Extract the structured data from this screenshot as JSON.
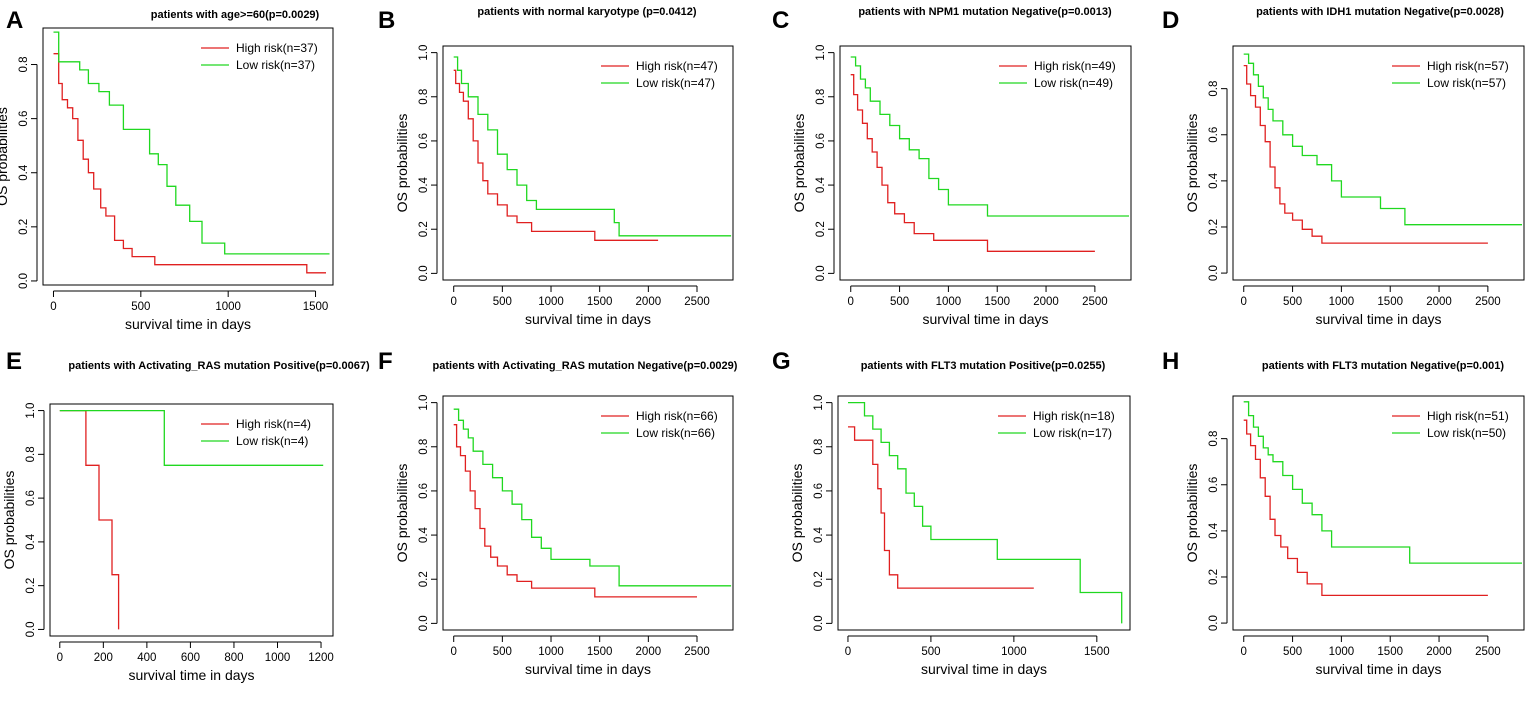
{
  "chart_data": [
    {
      "panel": "A",
      "type": "line",
      "title": "patients with age>=60(p=0.0029)",
      "xlabel": "survival time in days",
      "ylabel": "OS probabilities",
      "xticks": [
        0,
        500,
        1000,
        1500
      ],
      "yticks": [
        0.0,
        0.2,
        0.4,
        0.6,
        0.8
      ],
      "xlim": [
        -60,
        1600
      ],
      "ylim": [
        -0.015,
        0.935
      ],
      "legend_position": "top-right",
      "series": [
        {
          "name": "High risk(n=37)",
          "color": "#e02020",
          "x": [
            0,
            30,
            50,
            80,
            110,
            140,
            170,
            200,
            230,
            270,
            300,
            350,
            400,
            450,
            580,
            1450,
            1560
          ],
          "y": [
            0.84,
            0.73,
            0.67,
            0.64,
            0.6,
            0.52,
            0.45,
            0.4,
            0.34,
            0.27,
            0.24,
            0.15,
            0.12,
            0.09,
            0.06,
            0.03,
            0.03
          ]
        },
        {
          "name": "Low risk(n=37)",
          "color": "#20d820",
          "x": [
            0,
            30,
            150,
            200,
            260,
            320,
            400,
            550,
            600,
            650,
            700,
            780,
            850,
            980,
            1580
          ],
          "y": [
            0.92,
            0.81,
            0.78,
            0.73,
            0.7,
            0.65,
            0.56,
            0.47,
            0.43,
            0.35,
            0.28,
            0.22,
            0.14,
            0.1,
            0.1
          ]
        }
      ]
    },
    {
      "panel": "B",
      "type": "line",
      "title": "patients with normal karyotype (p=0.0412)",
      "xlabel": "survival time in days",
      "ylabel": "OS probabilities",
      "xticks": [
        0,
        500,
        1000,
        1500,
        2000,
        2500
      ],
      "yticks": [
        0.0,
        0.2,
        0.4,
        0.6,
        0.8,
        1.0
      ],
      "xlim": [
        -110,
        2870
      ],
      "ylim": [
        -0.03,
        1.03
      ],
      "legend_position": "top-right",
      "series": [
        {
          "name": "High risk(n=47)",
          "color": "#e02020",
          "x": [
            0,
            20,
            60,
            100,
            150,
            200,
            250,
            300,
            350,
            450,
            550,
            650,
            800,
            1450,
            2100
          ],
          "y": [
            0.92,
            0.86,
            0.82,
            0.78,
            0.7,
            0.6,
            0.5,
            0.42,
            0.36,
            0.31,
            0.26,
            0.23,
            0.19,
            0.15,
            0.15
          ]
        },
        {
          "name": "Low risk(n=47)",
          "color": "#20d820",
          "x": [
            0,
            40,
            80,
            150,
            250,
            350,
            450,
            550,
            650,
            750,
            850,
            1650,
            1700,
            2850
          ],
          "y": [
            0.98,
            0.92,
            0.86,
            0.8,
            0.72,
            0.65,
            0.54,
            0.47,
            0.4,
            0.33,
            0.29,
            0.23,
            0.17,
            0.17
          ]
        }
      ]
    },
    {
      "panel": "C",
      "type": "line",
      "title": "patients with NPM1 mutation Negative(p=0.0013)",
      "xlabel": "survival time in days",
      "ylabel": "OS probabilities",
      "xticks": [
        0,
        500,
        1000,
        1500,
        2000,
        2500
      ],
      "yticks": [
        0.0,
        0.2,
        0.4,
        0.6,
        0.8,
        1.0
      ],
      "xlim": [
        -110,
        2870
      ],
      "ylim": [
        -0.03,
        1.03
      ],
      "legend_position": "top-right",
      "series": [
        {
          "name": "High risk(n=49)",
          "color": "#e02020",
          "x": [
            0,
            30,
            70,
            120,
            170,
            220,
            270,
            320,
            380,
            450,
            550,
            650,
            850,
            1400,
            2500
          ],
          "y": [
            0.9,
            0.81,
            0.74,
            0.68,
            0.61,
            0.55,
            0.48,
            0.4,
            0.32,
            0.27,
            0.23,
            0.18,
            0.15,
            0.1,
            0.1
          ]
        },
        {
          "name": "Low risk(n=49)",
          "color": "#20d820",
          "x": [
            0,
            50,
            100,
            150,
            200,
            300,
            400,
            500,
            600,
            700,
            800,
            900,
            1000,
            1400,
            2850
          ],
          "y": [
            0.98,
            0.94,
            0.88,
            0.84,
            0.78,
            0.72,
            0.67,
            0.61,
            0.56,
            0.52,
            0.43,
            0.38,
            0.31,
            0.26,
            0.26
          ]
        }
      ]
    },
    {
      "panel": "D",
      "type": "line",
      "title": "patients with IDH1 mutation Negative(p=0.0028)",
      "xlabel": "survival time in days",
      "ylabel": "OS probabilities",
      "xticks": [
        0,
        500,
        1000,
        1500,
        2000,
        2500
      ],
      "yticks": [
        0.0,
        0.2,
        0.4,
        0.6,
        0.8
      ],
      "xlim": [
        -110,
        2870
      ],
      "ylim": [
        -0.03,
        0.985
      ],
      "legend_position": "top-right",
      "series": [
        {
          "name": "High risk(n=57)",
          "color": "#e02020",
          "x": [
            0,
            30,
            70,
            120,
            170,
            220,
            270,
            320,
            370,
            420,
            500,
            600,
            700,
            800,
            2500
          ],
          "y": [
            0.9,
            0.82,
            0.77,
            0.72,
            0.64,
            0.57,
            0.46,
            0.37,
            0.3,
            0.26,
            0.23,
            0.19,
            0.16,
            0.13,
            0.13
          ]
        },
        {
          "name": "Low risk(n=57)",
          "color": "#20d820",
          "x": [
            0,
            50,
            100,
            150,
            200,
            250,
            300,
            400,
            500,
            600,
            750,
            900,
            1000,
            1400,
            1650,
            2850
          ],
          "y": [
            0.95,
            0.91,
            0.86,
            0.81,
            0.76,
            0.71,
            0.66,
            0.6,
            0.55,
            0.51,
            0.47,
            0.4,
            0.33,
            0.28,
            0.21,
            0.21
          ]
        }
      ]
    },
    {
      "panel": "E",
      "type": "line",
      "title": "patients with Activating_RAS mutation Positive(p=0.0067)",
      "xlabel": "survival time in days",
      "ylabel": "OS probabilities",
      "xticks": [
        0,
        200,
        400,
        600,
        800,
        1000,
        1200
      ],
      "yticks": [
        0.0,
        0.2,
        0.4,
        0.6,
        0.8,
        1.0
      ],
      "xlim": [
        -45,
        1255
      ],
      "ylim": [
        -0.03,
        1.03
      ],
      "legend_position": "top-right",
      "series": [
        {
          "name": "High risk(n=4)",
          "color": "#e02020",
          "x": [
            0,
            120,
            180,
            240,
            270
          ],
          "y": [
            1.0,
            0.75,
            0.5,
            0.25,
            0.0
          ]
        },
        {
          "name": "Low risk(n=4)",
          "color": "#20d820",
          "x": [
            0,
            480,
            1210
          ],
          "y": [
            1.0,
            0.75,
            0.75
          ]
        }
      ]
    },
    {
      "panel": "F",
      "type": "line",
      "title": "patients with Activating_RAS mutation Negative(p=0.0029)",
      "xlabel": "survival time in days",
      "ylabel": "OS probabilities",
      "xticks": [
        0,
        500,
        1000,
        1500,
        2000,
        2500
      ],
      "yticks": [
        0.0,
        0.2,
        0.4,
        0.6,
        0.8,
        1.0
      ],
      "xlim": [
        -110,
        2870
      ],
      "ylim": [
        -0.03,
        1.03
      ],
      "legend_position": "top-right",
      "series": [
        {
          "name": "High risk(n=66)",
          "color": "#e02020",
          "x": [
            0,
            30,
            70,
            120,
            170,
            220,
            270,
            320,
            380,
            450,
            550,
            650,
            800,
            1450,
            2500
          ],
          "y": [
            0.9,
            0.8,
            0.76,
            0.69,
            0.6,
            0.52,
            0.43,
            0.35,
            0.3,
            0.26,
            0.22,
            0.19,
            0.16,
            0.12,
            0.12
          ]
        },
        {
          "name": "Low risk(n=66)",
          "color": "#20d820",
          "x": [
            0,
            50,
            100,
            150,
            200,
            300,
            400,
            500,
            600,
            700,
            800,
            900,
            1000,
            1400,
            1700,
            2850
          ],
          "y": [
            0.97,
            0.92,
            0.88,
            0.84,
            0.78,
            0.72,
            0.66,
            0.6,
            0.54,
            0.47,
            0.39,
            0.34,
            0.29,
            0.26,
            0.17,
            0.17
          ]
        }
      ]
    },
    {
      "panel": "G",
      "type": "line",
      "title": "patients with FLT3 mutation Positive(p=0.0255)",
      "xlabel": "survival time in days",
      "ylabel": "OS probabilities",
      "xticks": [
        0,
        500,
        1000,
        1500
      ],
      "yticks": [
        0.0,
        0.2,
        0.4,
        0.6,
        0.8,
        1.0
      ],
      "xlim": [
        -60,
        1700
      ],
      "ylim": [
        -0.03,
        1.03
      ],
      "legend_position": "top-right",
      "series": [
        {
          "name": "High risk(n=18)",
          "color": "#e02020",
          "x": [
            0,
            40,
            150,
            180,
            200,
            220,
            250,
            300,
            1120
          ],
          "y": [
            0.89,
            0.83,
            0.72,
            0.61,
            0.5,
            0.33,
            0.22,
            0.16,
            0.16
          ]
        },
        {
          "name": "Low risk(n=17)",
          "color": "#20d820",
          "x": [
            0,
            100,
            150,
            200,
            250,
            300,
            350,
            400,
            450,
            500,
            900,
            1400,
            1650
          ],
          "y": [
            1.0,
            0.94,
            0.88,
            0.82,
            0.76,
            0.7,
            0.59,
            0.53,
            0.44,
            0.38,
            0.29,
            0.14,
            0.0
          ]
        }
      ]
    },
    {
      "panel": "H",
      "type": "line",
      "title": "patients with FLT3 mutation Negative(p=0.001)",
      "xlabel": "survival time in days",
      "ylabel": "OS probabilities",
      "xticks": [
        0,
        500,
        1000,
        1500,
        2000,
        2500
      ],
      "yticks": [
        0.0,
        0.2,
        0.4,
        0.6,
        0.8
      ],
      "xlim": [
        -110,
        2870
      ],
      "ylim": [
        -0.03,
        0.985
      ],
      "legend_position": "top-right",
      "series": [
        {
          "name": "High risk(n=51)",
          "color": "#e02020",
          "x": [
            0,
            30,
            70,
            120,
            170,
            220,
            270,
            320,
            380,
            450,
            550,
            650,
            800,
            2500
          ],
          "y": [
            0.88,
            0.82,
            0.77,
            0.71,
            0.63,
            0.55,
            0.45,
            0.38,
            0.33,
            0.28,
            0.22,
            0.17,
            0.12,
            0.12
          ]
        },
        {
          "name": "Low risk(n=50)",
          "color": "#20d820",
          "x": [
            0,
            50,
            100,
            150,
            200,
            250,
            300,
            400,
            500,
            600,
            700,
            800,
            900,
            1700,
            2850
          ],
          "y": [
            0.96,
            0.9,
            0.85,
            0.81,
            0.76,
            0.73,
            0.7,
            0.64,
            0.58,
            0.52,
            0.47,
            0.4,
            0.33,
            0.26,
            0.26
          ]
        }
      ]
    }
  ]
}
